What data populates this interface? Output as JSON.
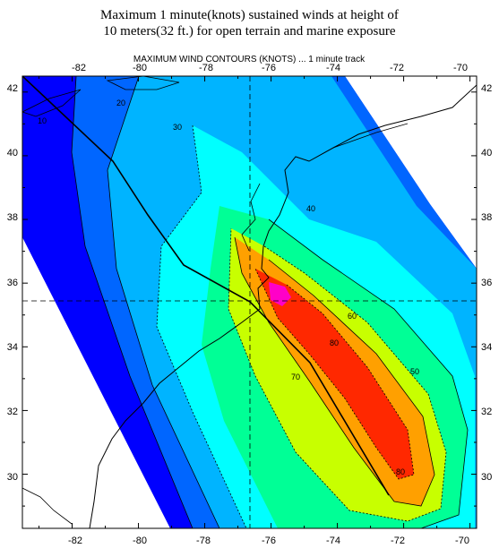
{
  "title": {
    "line1": "Maximum 1 minute(knots) sustained winds at height of",
    "line2": "10 meters(32 ft.) for open terrain and marine exposure"
  },
  "plot": {
    "subtitle": "MAXIMUM WIND CONTOURS (KNOTS) ...  1 minute track",
    "x_ticks": [
      "-82",
      "-80",
      "-78",
      "-76",
      "-74",
      "-72",
      "-70"
    ],
    "y_ticks": [
      "42",
      "40",
      "38",
      "36",
      "34",
      "32",
      "30"
    ]
  },
  "map_data": {
    "type": "filled-contour-map",
    "lon_range": [
      -83.5,
      -69.8
    ],
    "lat_range": [
      28.3,
      42.5
    ],
    "reference_lines": {
      "lon": -76.5,
      "lat": 35.4
    },
    "contour_labels": [
      "10",
      "20",
      "30",
      "40",
      "50",
      "60",
      "70",
      "80"
    ],
    "colors": {
      "lt20": "#0000ff",
      "20-30": "#0066ff",
      "30-40": "#00b4ff",
      "40-50": "#00ffff",
      "50-60": "#00ff96",
      "60-70": "#c8ff00",
      "70-80": "#ffa000",
      "80-90": "#ff2800",
      "90+": "#ff00c8"
    },
    "track": [
      [
        -83.4,
        42.5
      ],
      [
        -79.8,
        40.0
      ],
      [
        -78.4,
        38.3
      ],
      [
        -77.2,
        36.3
      ],
      [
        -75.9,
        35.2
      ],
      [
        -74.0,
        33.3
      ],
      [
        -72.0,
        29.4
      ]
    ]
  }
}
